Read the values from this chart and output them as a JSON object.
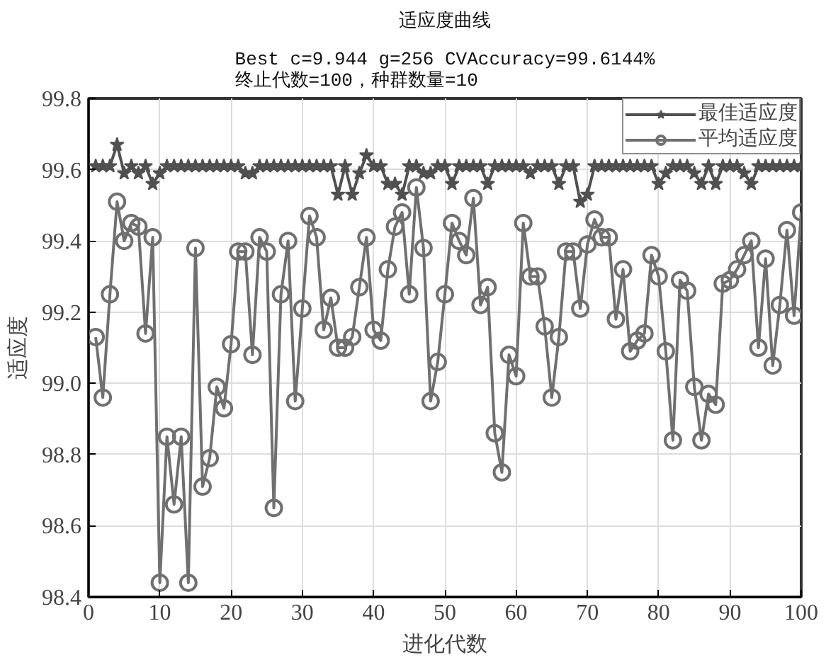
{
  "chart_data": {
    "type": "line",
    "title": "适应度曲线",
    "subtitle": "Best c=9.944 g=256 CVAccuracy=99.6144%\n终止代数=100，种群数量=10",
    "xlabel": "进化代数",
    "ylabel": "适应度",
    "x": [
      1,
      2,
      3,
      4,
      5,
      6,
      7,
      8,
      9,
      10,
      11,
      12,
      13,
      14,
      15,
      16,
      17,
      18,
      19,
      20,
      21,
      22,
      23,
      24,
      25,
      26,
      27,
      28,
      29,
      30,
      31,
      32,
      33,
      34,
      35,
      36,
      37,
      38,
      39,
      40,
      41,
      42,
      43,
      44,
      45,
      46,
      47,
      48,
      49,
      50,
      51,
      52,
      53,
      54,
      55,
      56,
      57,
      58,
      59,
      60,
      61,
      62,
      63,
      64,
      65,
      66,
      67,
      68,
      69,
      70,
      71,
      72,
      73,
      74,
      75,
      76,
      77,
      78,
      79,
      80,
      81,
      82,
      83,
      84,
      85,
      86,
      87,
      88,
      89,
      90,
      91,
      92,
      93,
      94,
      95,
      96,
      97,
      98,
      99,
      100
    ],
    "series": [
      {
        "name": "最佳适应度",
        "color": "#505050",
        "marker": "star",
        "values": [
          99.61,
          99.61,
          99.61,
          99.67,
          99.59,
          99.61,
          99.59,
          99.61,
          99.56,
          99.59,
          99.61,
          99.61,
          99.61,
          99.61,
          99.61,
          99.61,
          99.61,
          99.61,
          99.61,
          99.61,
          99.61,
          99.59,
          99.59,
          99.61,
          99.61,
          99.61,
          99.61,
          99.61,
          99.61,
          99.61,
          99.61,
          99.61,
          99.61,
          99.61,
          99.53,
          99.61,
          99.53,
          99.59,
          99.64,
          99.61,
          99.61,
          99.56,
          99.56,
          99.53,
          99.61,
          99.61,
          99.59,
          99.59,
          99.61,
          99.61,
          99.56,
          99.61,
          99.61,
          99.61,
          99.61,
          99.56,
          99.61,
          99.61,
          99.61,
          99.61,
          99.61,
          99.59,
          99.61,
          99.61,
          99.61,
          99.56,
          99.61,
          99.61,
          99.51,
          99.53,
          99.61,
          99.61,
          99.61,
          99.61,
          99.61,
          99.61,
          99.61,
          99.61,
          99.61,
          99.56,
          99.59,
          99.61,
          99.61,
          99.61,
          99.59,
          99.56,
          99.61,
          99.56,
          99.61,
          99.61,
          99.61,
          99.59,
          99.56,
          99.61,
          99.61,
          99.61,
          99.61,
          99.61,
          99.61,
          99.61
        ]
      },
      {
        "name": "平均适应度",
        "color": "#707070",
        "marker": "circle",
        "values": [
          99.13,
          98.96,
          99.25,
          99.51,
          99.4,
          99.45,
          99.44,
          99.14,
          99.41,
          98.44,
          98.85,
          98.66,
          98.85,
          98.44,
          99.38,
          98.71,
          98.79,
          98.99,
          98.93,
          99.11,
          99.37,
          99.37,
          99.08,
          99.41,
          99.37,
          98.65,
          99.25,
          99.4,
          98.95,
          99.21,
          99.47,
          99.41,
          99.15,
          99.24,
          99.1,
          99.1,
          99.13,
          99.27,
          99.41,
          99.15,
          99.12,
          99.32,
          99.44,
          99.48,
          99.25,
          99.55,
          99.38,
          98.95,
          99.06,
          99.25,
          99.45,
          99.4,
          99.36,
          99.52,
          99.22,
          99.27,
          98.86,
          98.75,
          99.08,
          99.02,
          99.45,
          99.3,
          99.3,
          99.16,
          98.96,
          99.13,
          99.37,
          99.37,
          99.21,
          99.39,
          99.46,
          99.41,
          99.41,
          99.18,
          99.32,
          99.09,
          99.12,
          99.14,
          99.36,
          99.3,
          99.09,
          98.84,
          99.29,
          99.26,
          98.99,
          98.84,
          98.97,
          98.94,
          99.28,
          99.29,
          99.32,
          99.36,
          99.4,
          99.1,
          99.35,
          99.05,
          99.22,
          99.43,
          99.19,
          99.48
        ]
      }
    ],
    "xlim": [
      0,
      100
    ],
    "xticks": [
      0,
      10,
      20,
      30,
      40,
      50,
      60,
      70,
      80,
      90,
      100
    ],
    "ylim": [
      98.4,
      99.8
    ],
    "yticks": [
      {
        "value": 98.4,
        "label": "98.4"
      },
      {
        "value": 98.6,
        "label": "98.6"
      },
      {
        "value": 98.8,
        "label": "98.8"
      },
      {
        "value": 99.0,
        "label": "99.0"
      },
      {
        "value": 99.2,
        "label": "99.2"
      },
      {
        "value": 99.4,
        "label": "99.4"
      },
      {
        "value": 99.6,
        "label": "99.6"
      },
      {
        "value": 99.8,
        "label": "99.8"
      }
    ],
    "grid": true,
    "legend": "top right"
  }
}
